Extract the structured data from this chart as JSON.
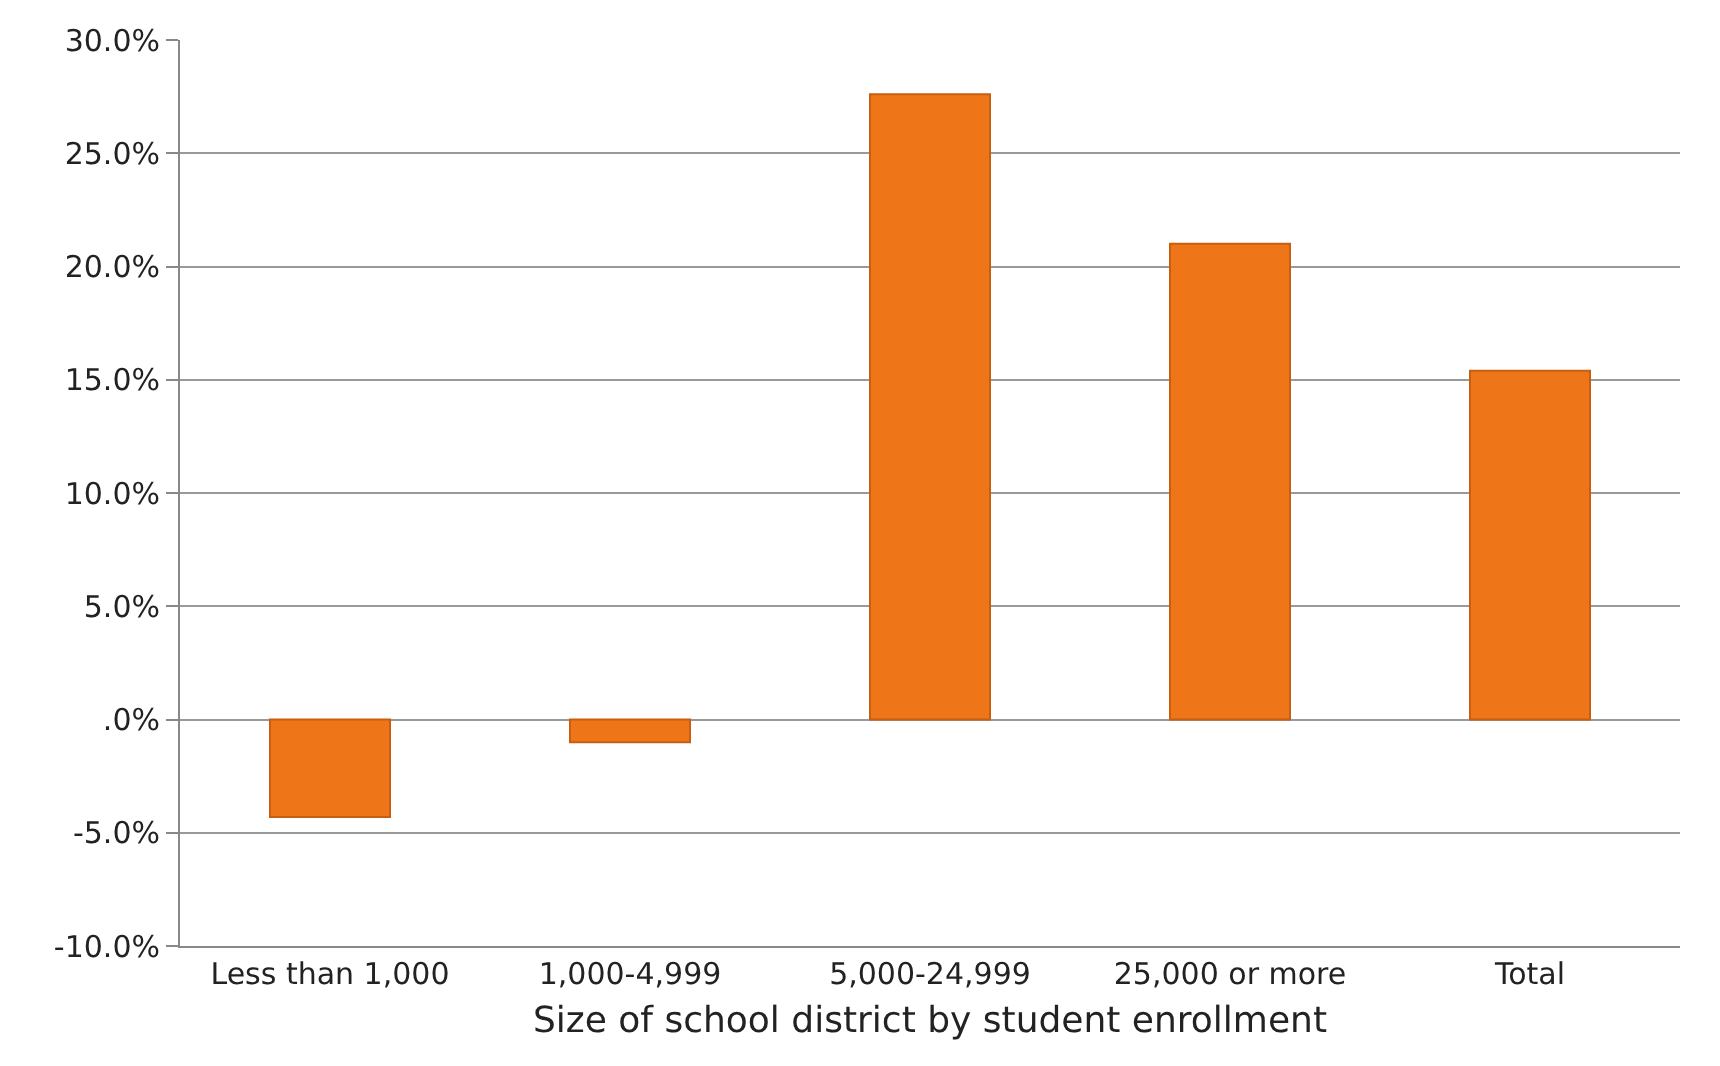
{
  "chart_data": {
    "type": "bar",
    "xlabel": "Size of school district by student enrollment",
    "categories": [
      "Less than 1,000",
      "1,000-4,999",
      "5,000-24,999",
      "25,000 or more",
      "Total"
    ],
    "values": [
      -4.3,
      -1.0,
      27.6,
      21.0,
      15.4
    ],
    "color": "#ee7518",
    "ylim": [
      -10,
      30
    ],
    "yticks": [
      {
        "value": -10,
        "label": "-10.0%"
      },
      {
        "value": -5,
        "label": "-5.0%"
      },
      {
        "value": 0,
        "label": ".0%"
      },
      {
        "value": 5,
        "label": "5.0%"
      },
      {
        "value": 10,
        "label": "10.0%"
      },
      {
        "value": 15,
        "label": "15.0%"
      },
      {
        "value": 20,
        "label": "20.0%"
      },
      {
        "value": 25,
        "label": "25.0%"
      },
      {
        "value": 30,
        "label": "30.0%"
      }
    ],
    "grid": "y"
  }
}
